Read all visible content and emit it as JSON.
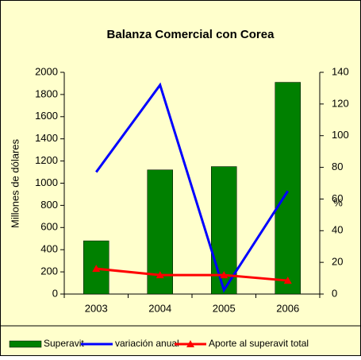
{
  "chart_data": {
    "type": "bar_line",
    "title": "Balanza Comercial con Corea",
    "y_label": "Millones de dólares",
    "y2_label": "%",
    "categories": [
      "2003",
      "2004",
      "2005",
      "2006"
    ],
    "series": [
      {
        "name": "Superavit",
        "type": "bar",
        "color": "#008000",
        "values": [
          480,
          1120,
          1150,
          1910
        ]
      },
      {
        "name": "variación anual",
        "type": "line",
        "axis": "y2",
        "color": "#0000ff",
        "values": [
          77,
          132,
          2.5,
          65
        ]
      },
      {
        "name": "Aporte al superavit total",
        "type": "line",
        "axis": "y2",
        "color": "#ff0000",
        "marker": "triangle",
        "values": [
          16,
          12,
          12,
          8.5
        ]
      }
    ],
    "ylim": [
      0,
      2000
    ],
    "yticks": [
      0,
      200,
      400,
      600,
      800,
      1000,
      1200,
      1400,
      1600,
      1800,
      2000
    ],
    "y2lim": [
      0,
      140
    ],
    "y2ticks": [
      0,
      20,
      40,
      60,
      80,
      100,
      120,
      140
    ],
    "grid": false,
    "legend": "bottom"
  }
}
